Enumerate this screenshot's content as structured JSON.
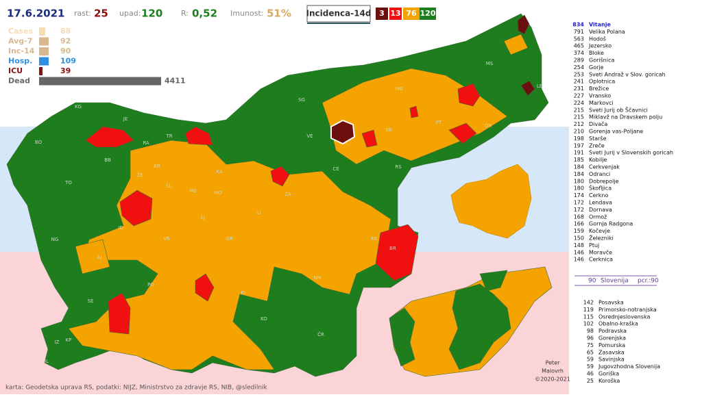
{
  "header": {
    "date": "17.6.2021",
    "growth_label": "rast:",
    "growth": 25,
    "decline_label": "upad:",
    "decline": 120,
    "r_label": "R:",
    "r": "0,52",
    "immunity_label": "Imunost:",
    "immunity": "51%",
    "button": "Incidenca-14d",
    "badges": [
      3,
      13,
      76,
      120
    ]
  },
  "legend": [
    {
      "label": "Cases",
      "value": 88
    },
    {
      "label": "Avg-7",
      "value": 92
    },
    {
      "label": "Inc-14",
      "value": 90
    },
    {
      "label": "Hosp.",
      "value": 109
    },
    {
      "label": "ICU",
      "value": 39
    },
    {
      "label": "Dead",
      "value": 4411
    }
  ],
  "municipalities": [
    {
      "value": 834,
      "name": "Vitanje"
    },
    {
      "value": 791,
      "name": "Velika Polana"
    },
    {
      "value": 563,
      "name": "Hodoš"
    },
    {
      "value": 465,
      "name": "Jezersko"
    },
    {
      "value": 374,
      "name": "Bloke"
    },
    {
      "value": 289,
      "name": "Gorišnica"
    },
    {
      "value": 254,
      "name": "Gorje"
    },
    {
      "value": 253,
      "name": "Sveti Andraž v Slov. goricah"
    },
    {
      "value": 241,
      "name": "Oplotnica"
    },
    {
      "value": 231,
      "name": "Brežice"
    },
    {
      "value": 227,
      "name": "Vransko"
    },
    {
      "value": 224,
      "name": "Markovci"
    },
    {
      "value": 215,
      "name": "Sveti Jurij ob Ščavnici"
    },
    {
      "value": 215,
      "name": "Miklavž na Dravskem polju"
    },
    {
      "value": 212,
      "name": "Divača"
    },
    {
      "value": 210,
      "name": "Gorenja vas-Poljane"
    },
    {
      "value": 198,
      "name": "Starše"
    },
    {
      "value": 197,
      "name": "Zreče"
    },
    {
      "value": 191,
      "name": "Sveti Jurij v Slovenskih goricah"
    },
    {
      "value": 185,
      "name": "Kobilje"
    },
    {
      "value": 184,
      "name": "Cerkvenjak"
    },
    {
      "value": 184,
      "name": "Odranci"
    },
    {
      "value": 180,
      "name": "Dobrepolje"
    },
    {
      "value": 180,
      "name": "Škofljica"
    },
    {
      "value": 174,
      "name": "Cerkno"
    },
    {
      "value": 172,
      "name": "Lendava"
    },
    {
      "value": 172,
      "name": "Dornava"
    },
    {
      "value": 168,
      "name": "Ormož"
    },
    {
      "value": 166,
      "name": "Gornja Radgona"
    },
    {
      "value": 159,
      "name": "Kočevje"
    },
    {
      "value": 150,
      "name": "Železniki"
    },
    {
      "value": 148,
      "name": "Ptuj"
    },
    {
      "value": 146,
      "name": "Moravče"
    },
    {
      "value": 146,
      "name": "Cerknica"
    }
  ],
  "national": {
    "value": 90,
    "name": "Slovenija",
    "pcr": "pcr.:90"
  },
  "regions": [
    {
      "value": 142,
      "name": "Posavska"
    },
    {
      "value": 119,
      "name": "Primorsko-notranjska"
    },
    {
      "value": 115,
      "name": "Osrednjeslovenska"
    },
    {
      "value": 102,
      "name": "Obalno-kraška"
    },
    {
      "value": 98,
      "name": "Podravska"
    },
    {
      "value": 96,
      "name": "Gorenjska"
    },
    {
      "value": 75,
      "name": "Pomurska"
    },
    {
      "value": 65,
      "name": "Zasavska"
    },
    {
      "value": 59,
      "name": "Savinjska"
    },
    {
      "value": 59,
      "name": "Jugovzhodna Slovenija"
    },
    {
      "value": 46,
      "name": "Goriška"
    },
    {
      "value": 25,
      "name": "Koroška"
    }
  ],
  "map_labels": [
    "KG",
    "JE",
    "BO",
    "RA",
    "TR",
    "BB",
    "KR",
    "ŽE",
    "TO",
    "ŠL",
    "ME",
    "KA",
    "MO",
    "ID",
    "LJ",
    "VR",
    "NG",
    "AJ",
    "GR",
    "PO",
    "SE",
    "IZ",
    "KP",
    "IL",
    "KO",
    "RI",
    "NM",
    "ČR",
    "BR",
    "KK",
    "ZA",
    "LI",
    "VE",
    "CE",
    "SG",
    "MB",
    "MS",
    "LE",
    "PT",
    "SB",
    "OR",
    "RS"
  ],
  "credits": [
    "Peter",
    "Malovrh",
    "©2020-2021"
  ],
  "footer": "karta: Geodetska uprava RS,  podatki: NIJZ, Ministrstvo za zdravje RS, NIB, @sledilnik"
}
